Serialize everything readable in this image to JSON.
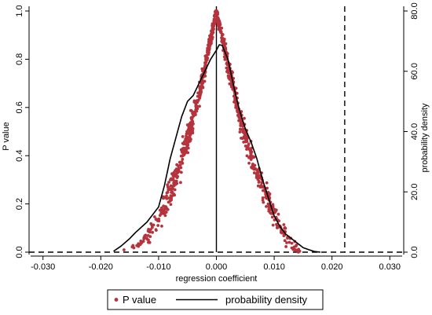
{
  "chart_data": {
    "type": "scatter",
    "xlabel": "regression coefficient",
    "ylabel_left": "P value",
    "ylabel_right": "probability density",
    "xlim": [
      -0.032,
      0.032
    ],
    "ylim_left": [
      0,
      1
    ],
    "ylim_right": [
      0,
      80
    ],
    "x_ticks": [
      -0.03,
      -0.02,
      -0.01,
      0,
      0.01,
      0.02,
      0.03
    ],
    "x_tick_labels": [
      "-0.030",
      "-0.020",
      "-0.010",
      "0.000",
      "0.010",
      "0.020",
      "0.030"
    ],
    "y_ticks_left": [
      0,
      0.2,
      0.4,
      0.6,
      0.8,
      1
    ],
    "y_tick_labels_left": [
      "0.0",
      "0.2",
      "0.4",
      "0.6",
      "0.8",
      "1.0"
    ],
    "y_ticks_right": [
      0,
      20,
      40,
      60,
      80
    ],
    "y_tick_labels_right": [
      "0.0",
      "20.0",
      "40.0",
      "60.0",
      "80.0"
    ],
    "vertical_reference_lines": [
      {
        "x": 0,
        "style": "solid"
      },
      {
        "x": 0.0222,
        "style": "dashed"
      }
    ],
    "horizontal_reference_lines": [
      {
        "y": 0,
        "axis": "left",
        "style": "dashed"
      }
    ],
    "grid": false,
    "legend_position": "bottom",
    "series": [
      {
        "name": "P value",
        "kind": "scatter",
        "axis": "left",
        "color": "#b5333d",
        "trend_left": {
          "x": [
            -0.0155,
            -0.012,
            -0.009,
            -0.006,
            -0.003,
            0
          ],
          "p": [
            0.0,
            0.05,
            0.18,
            0.38,
            0.65,
            1.0
          ]
        },
        "trend_right": {
          "x": [
            0,
            0.002,
            0.004,
            0.006,
            0.008,
            0.0105,
            0.0125,
            0.0145
          ],
          "p": [
            1.0,
            0.78,
            0.56,
            0.4,
            0.27,
            0.12,
            0.05,
            0.0
          ]
        },
        "n_points": 900
      },
      {
        "name": "probability density",
        "kind": "line",
        "axis": "right",
        "color": "#000000",
        "x": [
          -0.0178,
          -0.0165,
          -0.015,
          -0.014,
          -0.012,
          -0.01,
          -0.009,
          -0.008,
          -0.007,
          -0.006,
          -0.005,
          -0.004,
          -0.003,
          -0.002,
          -0.001,
          0,
          0.0005,
          0.001,
          0.002,
          0.003,
          0.004,
          0.005,
          0.006,
          0.007,
          0.008,
          0.009,
          0.01,
          0.011,
          0.012,
          0.013,
          0.014,
          0.015,
          0.016,
          0.017,
          0.018
        ],
        "y": [
          0.3,
          2,
          4.5,
          6.5,
          10,
          15,
          22,
          31,
          38,
          45,
          50,
          52,
          56,
          60,
          64,
          67,
          68.8,
          68.6,
          64,
          55,
          47,
          41,
          36.5,
          31,
          24,
          18,
          12,
          8.5,
          6,
          4.5,
          3,
          1.5,
          0.8,
          0.2,
          0
        ]
      }
    ]
  }
}
